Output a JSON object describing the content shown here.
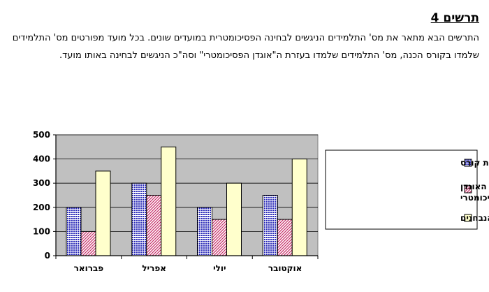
{
  "page": {
    "heading": "תרשים 4",
    "intro": "התרשים הבא מתאר את מס' התלמידים הניגשים לבחינה הפסיכומטרית במועדים שונים. בכל מועד מפורטים מס' התלמידים שלמדו בקורס הכנה, מס' התלמידים שלמדו בעזרת ה\"אוגדן הפסיכומטרי\" וסה\"כ הניגשים לבחינה באותו מועד."
  },
  "chart_data": {
    "type": "bar",
    "categories": [
      "פברואר",
      "אפריל",
      "יולי",
      "אוקטובר"
    ],
    "series": [
      {
        "name": "הכנה באמצעות קורס",
        "values": [
          200,
          300,
          200,
          250
        ],
        "color": "#3333cc",
        "pattern": "dots"
      },
      {
        "name": "הכנה באמצעות האוגדן הפסיכומטרי",
        "values": [
          100,
          250,
          150,
          150
        ],
        "color": "#cc3366",
        "pattern": "diagonal"
      },
      {
        "name": "סה\"כ הנבחנים",
        "values": [
          350,
          450,
          300,
          400
        ],
        "color": "#ffffcc",
        "pattern": "solid"
      }
    ],
    "yticks": [
      0,
      100,
      200,
      300,
      400,
      500
    ],
    "ylim": [
      0,
      500
    ],
    "plot_background": "#c0c0c0",
    "grid": true,
    "legend": "right"
  }
}
